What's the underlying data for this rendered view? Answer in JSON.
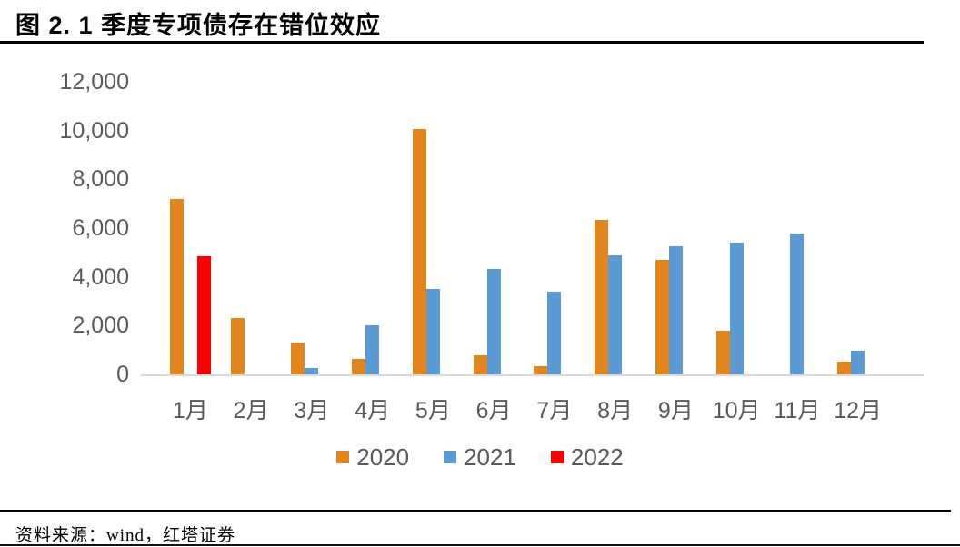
{
  "header": {
    "title": "图 2. 1 季度专项债存在错位效应"
  },
  "footer": {
    "source": "资料来源：wind，红塔证券"
  },
  "chart_data": {
    "type": "bar",
    "title": "图 2. 1 季度专项债存在错位效应",
    "categories": [
      "1月",
      "2月",
      "3月",
      "4月",
      "5月",
      "6月",
      "7月",
      "8月",
      "9月",
      "10月",
      "11月",
      "12月"
    ],
    "series": [
      {
        "name": "2020",
        "color": "#e2861b",
        "values": [
          7200,
          2320,
          1310,
          650,
          10050,
          790,
          330,
          6340,
          4680,
          1800,
          0,
          530
        ]
      },
      {
        "name": "2021",
        "color": "#5b9bd5",
        "values": [
          0,
          0,
          250,
          2020,
          3520,
          4310,
          3380,
          4890,
          5260,
          5400,
          5780,
          980
        ]
      },
      {
        "name": "2022",
        "color": "#ff0000",
        "values": [
          4860,
          0,
          0,
          0,
          0,
          0,
          0,
          0,
          0,
          0,
          0,
          0
        ]
      }
    ],
    "xlabel": "",
    "ylabel": "",
    "ylim": [
      0,
      12000
    ],
    "yticks": [
      0,
      2000,
      4000,
      6000,
      8000,
      10000,
      12000
    ],
    "ytick_labels": [
      "0",
      "2,000",
      "4,000",
      "6,000",
      "8,000",
      "10,000",
      "12,000"
    ],
    "grid": false,
    "legend_position": "bottom",
    "axis_text_color": "#595959",
    "axis_line_color": "#d9d9d9"
  }
}
